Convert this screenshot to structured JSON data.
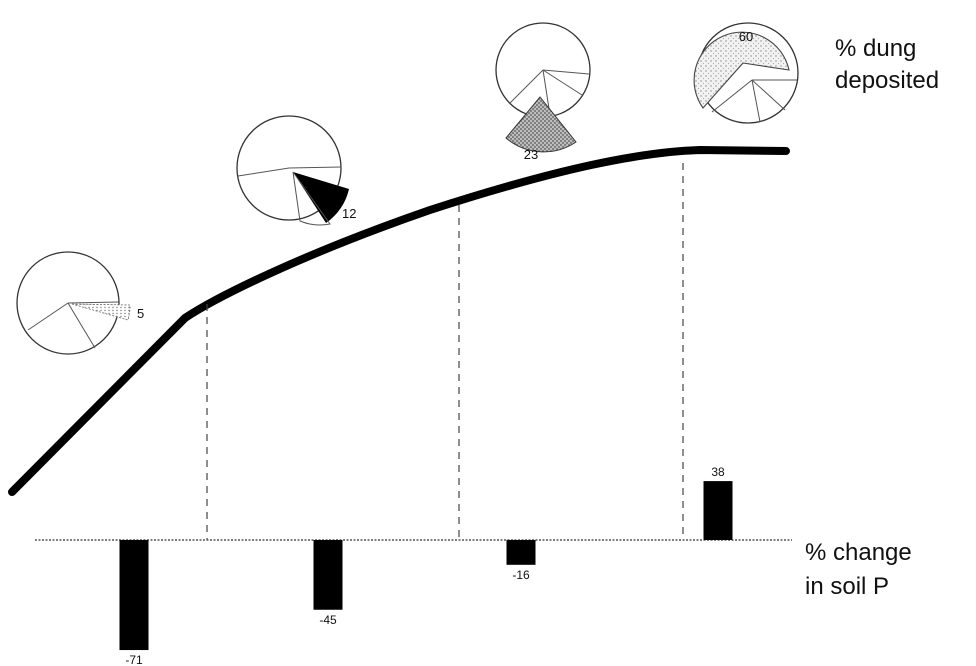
{
  "labels": {
    "dung_line1": "% dung",
    "dung_line2": "deposited",
    "soil_line1": "% change",
    "soil_line2": "in soil P"
  },
  "pies": [
    {
      "id": "pie-1",
      "highlight_value": 5,
      "highlight_label": "5",
      "highlight_style": "light-dotted"
    },
    {
      "id": "pie-2",
      "highlight_value": 12,
      "highlight_label": "12",
      "highlight_style": "black"
    },
    {
      "id": "pie-3",
      "highlight_value": 23,
      "highlight_label": "23",
      "highlight_style": "grey-stipple"
    },
    {
      "id": "pie-4",
      "highlight_value": 60,
      "highlight_label": "60",
      "highlight_style": "light-stipple"
    }
  ],
  "bars": [
    {
      "id": "bar-1",
      "value": -71,
      "label": "-71"
    },
    {
      "id": "bar-2",
      "value": -45,
      "label": "-45"
    },
    {
      "id": "bar-3",
      "value": -16,
      "label": "-16"
    },
    {
      "id": "bar-4",
      "value": 38,
      "label": "38"
    }
  ],
  "colors": {
    "ink": "#000000",
    "stipple_grey": "#9a9a9a",
    "stipple_light": "#d6d6d6"
  }
}
